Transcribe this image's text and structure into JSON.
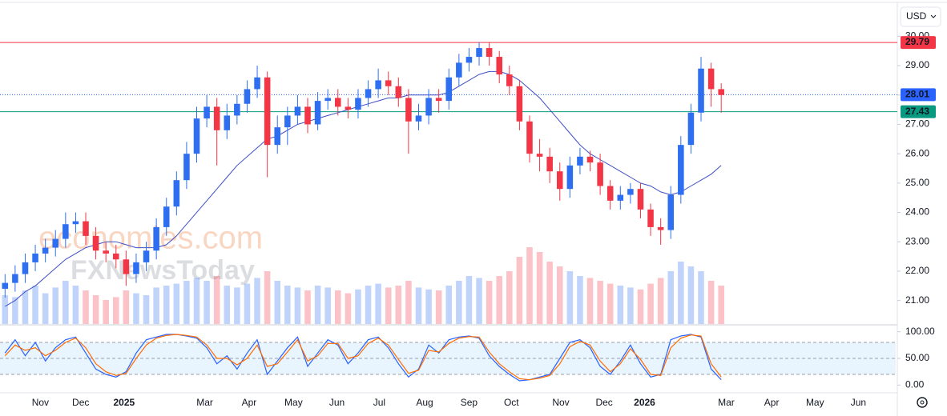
{
  "chart_data": {
    "type": "candlestick",
    "currency": "USD",
    "watermarks": [
      "economies.com",
      "FXNewsToday"
    ],
    "up_color": "#2e6ff2",
    "down_color": "#f23645",
    "xlim": [
      -0.5,
      88.3
    ],
    "xticks": [
      {
        "value": 3.5,
        "label": "Nov"
      },
      {
        "value": 7.5,
        "label": "Dec"
      },
      {
        "value": 11.8,
        "label": "2025"
      },
      {
        "value": 19.8,
        "label": "Mar"
      },
      {
        "value": 24.2,
        "label": "Apr"
      },
      {
        "value": 28.6,
        "label": "May"
      },
      {
        "value": 32.9,
        "label": "Jun"
      },
      {
        "value": 37.1,
        "label": "Jul"
      },
      {
        "value": 41.6,
        "label": "Aug"
      },
      {
        "value": 46.0,
        "label": "Sep"
      },
      {
        "value": 50.2,
        "label": "Oct"
      },
      {
        "value": 55.1,
        "label": "Nov"
      },
      {
        "value": 59.4,
        "label": "Dec"
      },
      {
        "value": 63.4,
        "label": "2026"
      },
      {
        "value": 71.5,
        "label": "Mar"
      },
      {
        "value": 76.0,
        "label": "Apr"
      },
      {
        "value": 80.3,
        "label": "May"
      },
      {
        "value": 84.6,
        "label": "Jun"
      }
    ],
    "ylim": [
      20.2,
      31.1
    ],
    "yticks": [
      {
        "value": 30,
        "label": "30.00"
      },
      {
        "value": 29,
        "label": "29.00"
      },
      {
        "value": 28,
        "label": "28.00"
      },
      {
        "value": 27,
        "label": "27.00"
      },
      {
        "value": 26,
        "label": "26.00"
      },
      {
        "value": 25,
        "label": "25.00"
      },
      {
        "value": 24,
        "label": "24.00"
      },
      {
        "value": 23,
        "label": "23.00"
      },
      {
        "value": 22,
        "label": "22.00"
      },
      {
        "value": 21,
        "label": "21.00"
      }
    ],
    "open": [
      21.4,
      21.6,
      21.9,
      22.3,
      22.6,
      22.8,
      23.1,
      23.6,
      23.7,
      23.2,
      22.7,
      22.6,
      22.4,
      21.9,
      22.3,
      22.7,
      23.5,
      24.2,
      25.1,
      26.0,
      27.2,
      27.6,
      26.8,
      27.3,
      27.7,
      28.2,
      28.6,
      26.3,
      26.9,
      27.3,
      27.6,
      27.0,
      27.8,
      27.9,
      27.6,
      27.5,
      27.9,
      28.2,
      28.5,
      28.3,
      27.9,
      27.1,
      27.3,
      27.9,
      27.8,
      28.6,
      29.1,
      29.3,
      29.6,
      29.3,
      28.7,
      28.3,
      27.1,
      26.0,
      25.9,
      25.4,
      24.8,
      25.6,
      25.9,
      25.7,
      24.9,
      24.4,
      24.6,
      24.8,
      24.1,
      23.5,
      23.4,
      24.6,
      26.3,
      27.4,
      28.9,
      28.2
    ],
    "high": [
      21.9,
      22.2,
      22.6,
      22.9,
      23.1,
      23.4,
      24.0,
      24.0,
      24.0,
      23.5,
      23.0,
      22.9,
      22.7,
      22.6,
      23.0,
      23.8,
      24.5,
      25.4,
      26.4,
      27.6,
      28.0,
      27.9,
      27.7,
      28.0,
      28.5,
      29.0,
      28.8,
      27.3,
      27.6,
      28.0,
      27.9,
      28.1,
      28.2,
      28.2,
      27.9,
      28.2,
      28.5,
      28.9,
      28.8,
      28.6,
      28.2,
      27.7,
      28.2,
      28.2,
      28.9,
      29.4,
      29.6,
      29.8,
      29.8,
      29.5,
      29.0,
      28.5,
      27.3,
      26.5,
      26.2,
      25.7,
      25.9,
      26.2,
      26.1,
      26.0,
      25.1,
      24.9,
      25.0,
      25.0,
      24.3,
      23.8,
      24.9,
      26.6,
      27.7,
      29.3,
      29.1,
      28.4
    ],
    "low": [
      21.1,
      21.3,
      21.6,
      22.0,
      22.3,
      22.5,
      22.8,
      23.3,
      22.9,
      22.4,
      22.3,
      22.1,
      21.5,
      21.6,
      22.0,
      22.4,
      23.2,
      23.9,
      24.8,
      25.7,
      26.9,
      25.6,
      26.5,
      27.0,
      27.4,
      27.9,
      25.2,
      26.0,
      26.3,
      27.0,
      26.7,
      26.8,
      27.5,
      27.3,
      27.2,
      27.2,
      27.6,
      27.9,
      28.0,
      27.6,
      26.0,
      26.8,
      27.0,
      27.4,
      27.5,
      28.3,
      28.8,
      29.0,
      29.0,
      28.4,
      28.0,
      26.8,
      25.7,
      25.4,
      25.0,
      24.4,
      24.5,
      25.3,
      25.4,
      24.6,
      24.1,
      24.1,
      24.3,
      23.8,
      23.2,
      22.9,
      23.1,
      24.3,
      26.0,
      27.1,
      27.6,
      27.4
    ],
    "close": [
      21.6,
      21.9,
      22.3,
      22.6,
      22.8,
      23.1,
      23.6,
      23.7,
      23.2,
      22.7,
      22.6,
      22.4,
      21.9,
      22.3,
      22.7,
      23.5,
      24.2,
      25.1,
      26.0,
      27.2,
      27.6,
      26.8,
      27.3,
      27.7,
      28.2,
      28.6,
      26.3,
      26.9,
      27.3,
      27.6,
      27.0,
      27.8,
      27.9,
      27.6,
      27.5,
      27.9,
      28.2,
      28.5,
      28.3,
      27.9,
      27.1,
      27.3,
      27.9,
      27.8,
      28.6,
      29.1,
      29.3,
      29.6,
      29.3,
      28.7,
      28.3,
      27.1,
      26.0,
      25.9,
      25.4,
      24.8,
      25.6,
      25.9,
      25.7,
      24.9,
      24.4,
      24.6,
      24.8,
      24.1,
      23.5,
      23.4,
      24.6,
      26.3,
      27.4,
      28.9,
      28.2,
      28.0
    ],
    "volume": [
      30,
      28,
      35,
      40,
      32,
      38,
      45,
      40,
      35,
      30,
      25,
      28,
      35,
      32,
      30,
      38,
      40,
      42,
      45,
      48,
      45,
      50,
      40,
      38,
      42,
      48,
      55,
      45,
      40,
      38,
      35,
      40,
      38,
      35,
      32,
      36,
      40,
      42,
      38,
      40,
      45,
      38,
      36,
      35,
      40,
      45,
      50,
      48,
      45,
      50,
      55,
      70,
      80,
      75,
      65,
      60,
      55,
      50,
      48,
      45,
      42,
      40,
      38,
      36,
      42,
      48,
      55,
      65,
      60,
      55,
      45,
      40
    ],
    "moving_average": {
      "color": "#3d4fc4",
      "values": [
        20.8,
        21.0,
        21.3,
        21.5,
        21.8,
        22.1,
        22.4,
        22.6,
        22.8,
        22.9,
        23.0,
        23.0,
        22.9,
        22.8,
        22.8,
        22.8,
        22.9,
        23.2,
        23.6,
        24.0,
        24.4,
        24.8,
        25.2,
        25.6,
        25.9,
        26.2,
        26.5,
        26.6,
        26.8,
        27.0,
        27.1,
        27.2,
        27.3,
        27.4,
        27.5,
        27.6,
        27.7,
        27.8,
        27.9,
        27.9,
        28.0,
        28.0,
        28.0,
        28.0,
        28.1,
        28.3,
        28.5,
        28.7,
        28.8,
        28.8,
        28.7,
        28.5,
        28.2,
        27.9,
        27.5,
        27.1,
        26.7,
        26.3,
        26.0,
        25.8,
        25.6,
        25.4,
        25.2,
        25.0,
        24.9,
        24.7,
        24.6,
        24.7,
        24.9,
        25.1,
        25.3,
        25.6
      ]
    },
    "price_lines": [
      {
        "value": 29.79,
        "color": "#f23645",
        "style": "solid"
      },
      {
        "value": 28.01,
        "color": "#2962ff",
        "style": "dotted"
      },
      {
        "value": 27.43,
        "color": "#089981",
        "style": "solid"
      }
    ],
    "stochastic": {
      "ylim": [
        -13,
        110
      ],
      "yticks": [
        {
          "value": 100,
          "label": "100.00"
        },
        {
          "value": 50,
          "label": "50.00"
        },
        {
          "value": 0,
          "label": "0.00"
        }
      ],
      "band": [
        20,
        80
      ],
      "levels": [
        80,
        50,
        20
      ],
      "series": [
        {
          "color": "#2962ff",
          "values": [
            60,
            85,
            55,
            80,
            45,
            70,
            85,
            90,
            60,
            30,
            20,
            15,
            25,
            60,
            85,
            90,
            95,
            95,
            92,
            88,
            70,
            40,
            55,
            30,
            60,
            85,
            20,
            45,
            70,
            90,
            35,
            60,
            85,
            75,
            40,
            60,
            85,
            90,
            70,
            40,
            15,
            30,
            75,
            60,
            85,
            90,
            92,
            88,
            55,
            35,
            20,
            8,
            10,
            15,
            20,
            50,
            80,
            85,
            70,
            35,
            20,
            45,
            75,
            40,
            15,
            20,
            85,
            92,
            95,
            90,
            30,
            10
          ]
        },
        {
          "color": "#ff6d00",
          "values": [
            55,
            75,
            65,
            70,
            55,
            65,
            80,
            88,
            70,
            40,
            25,
            18,
            22,
            50,
            75,
            88,
            93,
            95,
            93,
            90,
            75,
            50,
            50,
            38,
            50,
            75,
            35,
            40,
            62,
            85,
            45,
            55,
            78,
            78,
            50,
            55,
            78,
            88,
            75,
            48,
            22,
            28,
            65,
            62,
            78,
            88,
            91,
            90,
            62,
            40,
            25,
            12,
            10,
            13,
            18,
            40,
            72,
            82,
            75,
            45,
            25,
            40,
            68,
            48,
            20,
            18,
            70,
            88,
            94,
            92,
            40,
            15
          ]
        }
      ]
    }
  }
}
